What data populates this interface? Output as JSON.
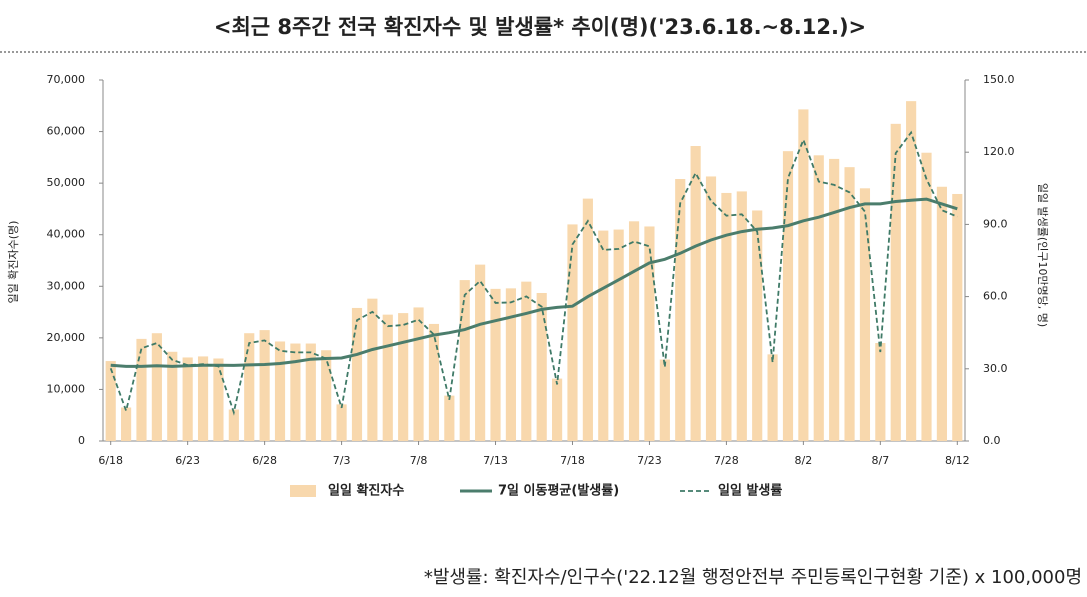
{
  "chart_data": {
    "type": "bar-line",
    "title": "<최근 8주간 전국 확진자수 및 발생률* 추이(명)('23.6.18.~8.12.)>",
    "ylabel": "일일 확진자수(명)",
    "y2label": "일일 발생률(인구10만명당, 명)",
    "footnote": "*발생률: 확진자수/인구수('22.12월 행정안전부 주민등록인구현황 기준) x 100,000명",
    "categories": [
      "6/18",
      null,
      null,
      null,
      null,
      "6/23",
      null,
      null,
      null,
      null,
      "6/28",
      null,
      null,
      null,
      null,
      "7/3",
      null,
      null,
      null,
      null,
      "7/8",
      null,
      null,
      null,
      null,
      "7/13",
      null,
      null,
      null,
      null,
      "7/18",
      null,
      null,
      null,
      null,
      "7/23",
      null,
      null,
      null,
      null,
      "7/28",
      null,
      null,
      null,
      null,
      "8/2",
      null,
      null,
      null,
      null,
      "8/7",
      null,
      null,
      null,
      null,
      "8/12"
    ],
    "series": [
      {
        "name": "일일 확진자수",
        "type": "bar",
        "color": "#f8d8ad",
        "values": [
          15500,
          6500,
          19800,
          20900,
          17300,
          16200,
          16400,
          16000,
          6100,
          20900,
          21500,
          19300,
          18900,
          18900,
          17600,
          7100,
          25800,
          27600,
          24500,
          24800,
          25900,
          22700,
          8800,
          31200,
          34200,
          29500,
          29600,
          30900,
          28700,
          12100,
          42000,
          47000,
          40800,
          41000,
          42600,
          41600,
          15800,
          50800,
          57200,
          51300,
          48100,
          48400,
          44700,
          16800,
          56200,
          64300,
          55400,
          54700,
          53100,
          49000,
          19000,
          61500,
          65900,
          55900,
          49300,
          47900
        ]
      },
      {
        "name": "7일 이동평균(발생률)",
        "type": "line",
        "axis": "y2",
        "color": "#4b7d6c",
        "dashed": false,
        "values": [
          31.5,
          31.0,
          31.0,
          31.3,
          31.0,
          31.3,
          31.5,
          31.5,
          31.4,
          31.6,
          31.8,
          32.2,
          33.0,
          34.0,
          34.3,
          34.5,
          36.0,
          38.0,
          39.5,
          41.0,
          42.5,
          44.0,
          45.0,
          46.3,
          48.5,
          50.0,
          51.5,
          53.0,
          54.7,
          55.5,
          56.0,
          60.0,
          63.5,
          67.0,
          70.5,
          74.0,
          75.5,
          78.0,
          81.0,
          83.5,
          85.5,
          87.0,
          88.0,
          88.5,
          89.5,
          91.5,
          93.0,
          95.0,
          97.0,
          98.5,
          98.5,
          99.5,
          100.0,
          100.5,
          98.5,
          96.5
        ]
      },
      {
        "name": "일일 발생률",
        "type": "line",
        "axis": "y2",
        "color": "#3f7a67",
        "dashed": true,
        "values": [
          30.2,
          12.6,
          38.5,
          40.7,
          33.7,
          31.5,
          31.9,
          31.1,
          11.9,
          40.7,
          41.8,
          37.5,
          36.8,
          36.8,
          34.2,
          13.8,
          50.2,
          53.7,
          47.7,
          48.2,
          50.4,
          44.2,
          17.1,
          60.7,
          66.5,
          57.4,
          57.6,
          60.1,
          55.8,
          23.5,
          81.7,
          91.4,
          79.4,
          79.8,
          82.9,
          80.9,
          30.7,
          98.8,
          111.3,
          99.8,
          93.6,
          94.2,
          87.0,
          32.7,
          109.3,
          125.1,
          107.8,
          106.4,
          103.3,
          95.3,
          37.0,
          119.6,
          128.2,
          108.8,
          95.9,
          93.2
        ]
      }
    ],
    "ylim": [
      0,
      70000
    ],
    "yticks": [
      0,
      {
        "value": 10000,
        "label": "10,000"
      },
      {
        "value": 20000,
        "label": "20,000"
      },
      {
        "value": 30000,
        "label": "30,000"
      },
      {
        "value": 40000,
        "label": "40,000"
      },
      {
        "value": 50000,
        "label": "50,000"
      },
      {
        "value": 60000,
        "label": "60,000"
      },
      {
        "value": 70000,
        "label": "70,000"
      }
    ],
    "y2lim": [
      0,
      150
    ],
    "y2ticks": [
      {
        "value": 0,
        "label": "0.0"
      },
      {
        "value": 30,
        "label": "30.0"
      },
      {
        "value": 60,
        "label": "60.0"
      },
      {
        "value": 90,
        "label": "90.0"
      },
      {
        "value": 120,
        "label": "120.0"
      },
      {
        "value": 150,
        "label": "150.0"
      }
    ]
  }
}
